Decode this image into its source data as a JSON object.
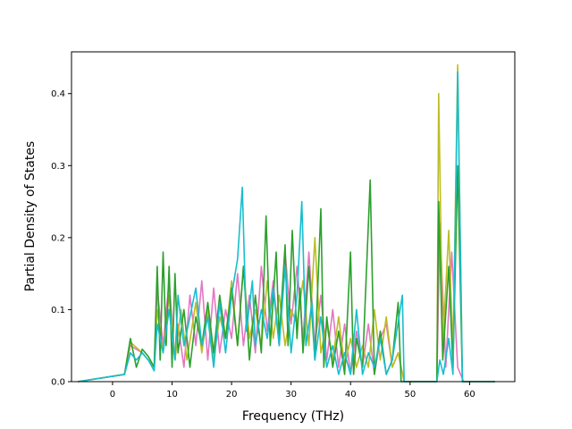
{
  "chart_data": {
    "type": "line",
    "title": "",
    "xlabel": "Frequency (THz)",
    "ylabel": "Partial Density of States",
    "xlim": [
      -6.9,
      67.6
    ],
    "ylim": [
      0.0,
      0.458
    ],
    "xticks": [
      0,
      10,
      20,
      30,
      40,
      50,
      60
    ],
    "yticks": [
      0.0,
      0.1,
      0.2,
      0.3,
      0.4
    ],
    "ytick_labels": [
      "0.0",
      "0.1",
      "0.2",
      "0.3",
      "0.4"
    ],
    "grid": false,
    "legend": false,
    "colors": [
      "#1f77b4",
      "#ff7f0e",
      "#2ca02c",
      "#d62728",
      "#9467bd",
      "#8c564b",
      "#e377c2",
      "#7f7f7f",
      "#bcbd22",
      "#17becf"
    ],
    "series": [
      {
        "color": "#e377c2",
        "points": [
          [
            -5.8,
            0
          ],
          [
            2,
            0.01
          ],
          [
            3,
            0.05
          ],
          [
            5,
            0.04
          ],
          [
            7,
            0.02
          ],
          [
            7.5,
            0.13
          ],
          [
            8.5,
            0.05
          ],
          [
            9.5,
            0.14
          ],
          [
            10.5,
            0.03
          ],
          [
            11,
            0.08
          ],
          [
            12,
            0.02
          ],
          [
            13,
            0.12
          ],
          [
            14,
            0.05
          ],
          [
            15,
            0.14
          ],
          [
            16,
            0.03
          ],
          [
            17,
            0.13
          ],
          [
            18,
            0.04
          ],
          [
            19,
            0.1
          ],
          [
            20,
            0.06
          ],
          [
            21,
            0.15
          ],
          [
            22,
            0.05
          ],
          [
            23,
            0.12
          ],
          [
            24,
            0.04
          ],
          [
            25,
            0.16
          ],
          [
            26,
            0.07
          ],
          [
            27,
            0.14
          ],
          [
            28,
            0.05
          ],
          [
            29,
            0.18
          ],
          [
            30,
            0.08
          ],
          [
            31,
            0.16
          ],
          [
            32,
            0.06
          ],
          [
            33,
            0.18
          ],
          [
            34,
            0.05
          ],
          [
            35,
            0.12
          ],
          [
            36,
            0.03
          ],
          [
            37,
            0.1
          ],
          [
            38,
            0.02
          ],
          [
            39,
            0.08
          ],
          [
            40,
            0.01
          ],
          [
            41,
            0.07
          ],
          [
            42,
            0.02
          ],
          [
            43,
            0.08
          ],
          [
            44,
            0.01
          ],
          [
            45,
            0.06
          ],
          [
            46,
            0.08
          ],
          [
            47,
            0.02
          ],
          [
            48,
            0.04
          ],
          [
            49,
            0
          ],
          [
            54.5,
            0
          ],
          [
            55,
            0.22
          ],
          [
            56,
            0.02
          ],
          [
            57,
            0.18
          ],
          [
            58,
            0.02
          ],
          [
            59,
            0
          ],
          [
            64.3,
            0
          ]
        ]
      },
      {
        "color": "#bcbd22",
        "points": [
          [
            -5.8,
            0
          ],
          [
            2,
            0.01
          ],
          [
            3,
            0.055
          ],
          [
            5,
            0.04
          ],
          [
            7,
            0.02
          ],
          [
            7.5,
            0.1
          ],
          [
            8.5,
            0.04
          ],
          [
            9.5,
            0.12
          ],
          [
            10.5,
            0.03
          ],
          [
            11.5,
            0.1
          ],
          [
            12.5,
            0.03
          ],
          [
            14,
            0.11
          ],
          [
            15,
            0.04
          ],
          [
            16,
            0.1
          ],
          [
            17,
            0.03
          ],
          [
            18,
            0.09
          ],
          [
            19,
            0.06
          ],
          [
            20,
            0.14
          ],
          [
            21,
            0.05
          ],
          [
            22,
            0.16
          ],
          [
            23,
            0.06
          ],
          [
            24,
            0.1
          ],
          [
            25,
            0.05
          ],
          [
            26,
            0.14
          ],
          [
            27,
            0.06
          ],
          [
            28,
            0.12
          ],
          [
            29,
            0.05
          ],
          [
            30,
            0.1
          ],
          [
            31,
            0.08
          ],
          [
            32,
            0.14
          ],
          [
            33,
            0.05
          ],
          [
            34,
            0.2
          ],
          [
            35,
            0.04
          ],
          [
            36,
            0.08
          ],
          [
            37,
            0.03
          ],
          [
            38,
            0.09
          ],
          [
            39,
            0.02
          ],
          [
            40,
            0.06
          ],
          [
            41,
            0.02
          ],
          [
            42,
            0.05
          ],
          [
            43,
            0.02
          ],
          [
            44,
            0.1
          ],
          [
            45,
            0.03
          ],
          [
            46,
            0.09
          ],
          [
            47,
            0.02
          ],
          [
            48,
            0.04
          ],
          [
            49,
            0
          ],
          [
            54.5,
            0
          ],
          [
            54.8,
            0.4
          ],
          [
            55.5,
            0.05
          ],
          [
            56.5,
            0.21
          ],
          [
            57.2,
            0.04
          ],
          [
            58,
            0.44
          ],
          [
            58.8,
            0
          ],
          [
            64.3,
            0
          ]
        ]
      },
      {
        "color": "#2ca02c",
        "points": [
          [
            -5.8,
            0
          ],
          [
            2,
            0.01
          ],
          [
            3,
            0.06
          ],
          [
            4,
            0.02
          ],
          [
            5,
            0.045
          ],
          [
            6,
            0.035
          ],
          [
            7,
            0.02
          ],
          [
            7.5,
            0.16
          ],
          [
            8,
            0.03
          ],
          [
            8.5,
            0.18
          ],
          [
            9,
            0.05
          ],
          [
            9.5,
            0.16
          ],
          [
            10,
            0.02
          ],
          [
            10.5,
            0.15
          ],
          [
            11,
            0.04
          ],
          [
            12,
            0.1
          ],
          [
            13,
            0.02
          ],
          [
            14,
            0.09
          ],
          [
            15,
            0.05
          ],
          [
            16,
            0.11
          ],
          [
            17,
            0.04
          ],
          [
            18,
            0.12
          ],
          [
            19,
            0.06
          ],
          [
            20,
            0.13
          ],
          [
            21,
            0.05
          ],
          [
            22,
            0.16
          ],
          [
            23,
            0.03
          ],
          [
            24,
            0.12
          ],
          [
            25,
            0.04
          ],
          [
            25.8,
            0.23
          ],
          [
            26.5,
            0.05
          ],
          [
            27.5,
            0.18
          ],
          [
            28,
            0.06
          ],
          [
            29,
            0.19
          ],
          [
            29.5,
            0.05
          ],
          [
            30.2,
            0.21
          ],
          [
            31,
            0.06
          ],
          [
            31.5,
            0.13
          ],
          [
            32,
            0.04
          ],
          [
            33,
            0.16
          ],
          [
            34,
            0.03
          ],
          [
            35,
            0.24
          ],
          [
            35.5,
            0.02
          ],
          [
            36,
            0.09
          ],
          [
            37,
            0.02
          ],
          [
            38,
            0.07
          ],
          [
            39,
            0.01
          ],
          [
            40,
            0.18
          ],
          [
            40.5,
            0.01
          ],
          [
            41,
            0.06
          ],
          [
            42,
            0.02
          ],
          [
            43.3,
            0.28
          ],
          [
            44,
            0.01
          ],
          [
            45,
            0.07
          ],
          [
            46,
            0.01
          ],
          [
            47,
            0.03
          ],
          [
            48,
            0.11
          ],
          [
            48.5,
            0
          ],
          [
            49,
            0
          ],
          [
            54.5,
            0
          ],
          [
            54.8,
            0.25
          ],
          [
            55.5,
            0.03
          ],
          [
            56.5,
            0.16
          ],
          [
            57.2,
            0.02
          ],
          [
            58,
            0.3
          ],
          [
            58.8,
            0
          ],
          [
            64.3,
            0
          ]
        ]
      },
      {
        "color": "#17becf",
        "points": [
          [
            -5.8,
            0
          ],
          [
            2,
            0.01
          ],
          [
            3,
            0.04
          ],
          [
            4,
            0.03
          ],
          [
            5,
            0.04
          ],
          [
            6,
            0.03
          ],
          [
            7,
            0.015
          ],
          [
            7.5,
            0.08
          ],
          [
            8.5,
            0.04
          ],
          [
            9.5,
            0.1
          ],
          [
            10.5,
            0.03
          ],
          [
            11,
            0.12
          ],
          [
            12,
            0.05
          ],
          [
            13,
            0.09
          ],
          [
            14,
            0.13
          ],
          [
            15,
            0.05
          ],
          [
            16,
            0.09
          ],
          [
            17,
            0.02
          ],
          [
            18,
            0.11
          ],
          [
            19,
            0.04
          ],
          [
            20,
            0.12
          ],
          [
            21,
            0.17
          ],
          [
            21.8,
            0.27
          ],
          [
            22.5,
            0.07
          ],
          [
            23.5,
            0.14
          ],
          [
            24,
            0.05
          ],
          [
            25,
            0.1
          ],
          [
            26,
            0.06
          ],
          [
            27,
            0.13
          ],
          [
            28,
            0.05
          ],
          [
            29,
            0.16
          ],
          [
            30,
            0.04
          ],
          [
            31,
            0.12
          ],
          [
            31.8,
            0.25
          ],
          [
            32.5,
            0.05
          ],
          [
            33.5,
            0.11
          ],
          [
            34,
            0.03
          ],
          [
            35,
            0.09
          ],
          [
            36,
            0.02
          ],
          [
            37,
            0.05
          ],
          [
            38,
            0.01
          ],
          [
            39,
            0.04
          ],
          [
            40,
            0.01
          ],
          [
            41,
            0.1
          ],
          [
            42,
            0.01
          ],
          [
            43,
            0.04
          ],
          [
            44,
            0.02
          ],
          [
            45,
            0.06
          ],
          [
            46,
            0.01
          ],
          [
            47,
            0.03
          ],
          [
            48.7,
            0.12
          ],
          [
            49,
            0
          ],
          [
            54.5,
            0
          ],
          [
            55,
            0.03
          ],
          [
            55.6,
            0.01
          ],
          [
            56.5,
            0.06
          ],
          [
            57.2,
            0.01
          ],
          [
            58,
            0.43
          ],
          [
            58.8,
            0
          ],
          [
            64.3,
            0
          ]
        ]
      }
    ]
  }
}
